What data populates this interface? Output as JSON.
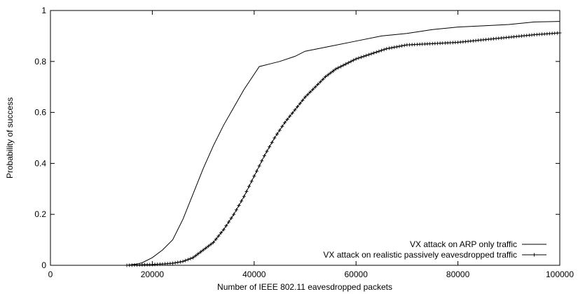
{
  "chart_data": {
    "type": "line",
    "title": "",
    "xlabel": "Number of IEEE 802.11 eavesdropped packets",
    "ylabel": "Probability of success",
    "xlim": [
      0,
      100000
    ],
    "ylim": [
      0,
      1
    ],
    "xticks": [
      "0",
      "20000",
      "40000",
      "60000",
      "80000",
      "100000"
    ],
    "yticks": [
      "0",
      "0.2",
      "0.4",
      "0.6",
      "0.8",
      "1"
    ],
    "grid": false,
    "legend_position": "bottom-right",
    "series": [
      {
        "name": "VX attack on ARP only traffic",
        "marker": "none",
        "points": [
          [
            15000,
            0
          ],
          [
            17000,
            0.005
          ],
          [
            18000,
            0.01
          ],
          [
            20000,
            0.03
          ],
          [
            22000,
            0.06
          ],
          [
            24000,
            0.1
          ],
          [
            26000,
            0.18
          ],
          [
            28000,
            0.28
          ],
          [
            30000,
            0.38
          ],
          [
            32000,
            0.47
          ],
          [
            34000,
            0.55
          ],
          [
            36000,
            0.62
          ],
          [
            38000,
            0.69
          ],
          [
            40000,
            0.75
          ],
          [
            41000,
            0.78
          ],
          [
            43000,
            0.79
          ],
          [
            45000,
            0.8
          ],
          [
            48000,
            0.82
          ],
          [
            50000,
            0.84
          ],
          [
            55000,
            0.86
          ],
          [
            60000,
            0.88
          ],
          [
            65000,
            0.9
          ],
          [
            70000,
            0.91
          ],
          [
            75000,
            0.925
          ],
          [
            80000,
            0.935
          ],
          [
            85000,
            0.94
          ],
          [
            90000,
            0.945
          ],
          [
            95000,
            0.955
          ],
          [
            100000,
            0.957
          ]
        ]
      },
      {
        "name": "VX attack on realistic passively eavesdropped traffic",
        "marker": "plus",
        "points": [
          [
            15000,
            0
          ],
          [
            18000,
            0.002
          ],
          [
            20000,
            0.003
          ],
          [
            22000,
            0.005
          ],
          [
            24000,
            0.008
          ],
          [
            26000,
            0.015
          ],
          [
            28000,
            0.03
          ],
          [
            30000,
            0.06
          ],
          [
            32000,
            0.09
          ],
          [
            34000,
            0.14
          ],
          [
            36000,
            0.2
          ],
          [
            38000,
            0.27
          ],
          [
            40000,
            0.35
          ],
          [
            42000,
            0.43
          ],
          [
            44000,
            0.5
          ],
          [
            46000,
            0.56
          ],
          [
            48000,
            0.61
          ],
          [
            50000,
            0.66
          ],
          [
            52000,
            0.7
          ],
          [
            54000,
            0.74
          ],
          [
            56000,
            0.77
          ],
          [
            58000,
            0.79
          ],
          [
            60000,
            0.81
          ],
          [
            63000,
            0.83
          ],
          [
            66000,
            0.85
          ],
          [
            70000,
            0.865
          ],
          [
            75000,
            0.87
          ],
          [
            80000,
            0.875
          ],
          [
            85000,
            0.885
          ],
          [
            90000,
            0.895
          ],
          [
            95000,
            0.905
          ],
          [
            100000,
            0.912
          ]
        ]
      }
    ]
  }
}
